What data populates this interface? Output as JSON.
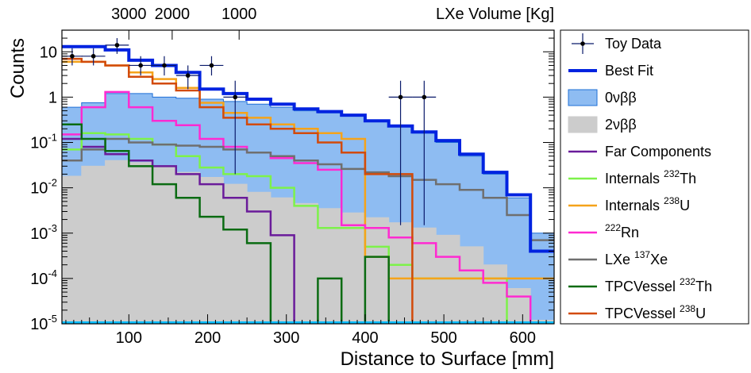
{
  "chart_data": {
    "type": "histogram",
    "xlabel": "Distance to Surface [mm]",
    "ylabel": "Counts",
    "xlim": [
      15,
      640
    ],
    "ylim": [
      1e-05,
      30
    ],
    "yscale": "log",
    "x_ticks": [
      100,
      200,
      300,
      400,
      500,
      600
    ],
    "x_tick_labels": [
      "100",
      "200",
      "300",
      "400",
      "500",
      "600"
    ],
    "y_ticks": [
      1e-05,
      0.0001,
      0.001,
      0.01,
      0.1,
      1,
      10
    ],
    "y_tick_labels": [
      {
        "base": "10",
        "exp": "-5"
      },
      {
        "base": "10",
        "exp": "-4"
      },
      {
        "base": "10",
        "exp": "-3"
      },
      {
        "base": "10",
        "exp": "-2"
      },
      {
        "base": "10",
        "exp": "-1"
      },
      {
        "base": "1",
        "exp": ""
      },
      {
        "base": "10",
        "exp": ""
      }
    ],
    "top_axis": {
      "label": "LXe Volume [Kg]",
      "ticks": [
        {
          "label": "3000",
          "x": 100
        },
        {
          "label": "2000",
          "x": 155
        },
        {
          "label": "1000",
          "x": 240
        }
      ]
    },
    "bin_edges": [
      15,
      40,
      70,
      100,
      130,
      160,
      190,
      220,
      250,
      280,
      310,
      340,
      370,
      400,
      430,
      460,
      490,
      520,
      550,
      580,
      610,
      640
    ],
    "series": [
      {
        "key": "ov",
        "kind": "fill",
        "fill": "#8ebcf2",
        "stroke": "#1f6fd6",
        "stroke_width": 1,
        "values": [
          0.6,
          0.75,
          1.2,
          1.2,
          1.0,
          0.95,
          0.9,
          0.8,
          0.7,
          0.6,
          0.5,
          0.45,
          0.38,
          0.3,
          0.22,
          0.16,
          0.1,
          0.05,
          0.02,
          0.006,
          0.001
        ]
      },
      {
        "key": "tv",
        "kind": "fill",
        "fill": "#cccccc",
        "stroke": "#cccccc",
        "stroke_width": 1,
        "values": [
          0.018,
          0.03,
          0.04,
          0.036,
          0.03,
          0.022,
          0.017,
          0.012,
          0.008,
          0.006,
          0.0045,
          0.0035,
          0.0028,
          0.0022,
          0.0017,
          0.0013,
          0.0009,
          0.0005,
          0.0002,
          6e-05,
          1.2e-05
        ]
      },
      {
        "key": "far",
        "kind": "line",
        "color": "#6a1b9a",
        "stroke_width": 2.5,
        "values": [
          0.12,
          0.08,
          0.055,
          0.04,
          0.03,
          0.02,
          0.012,
          0.006,
          0.003,
          0.0009,
          1e-05,
          1e-05,
          1e-05,
          1e-05,
          1e-05,
          1e-05,
          1e-05,
          1e-05,
          1e-05,
          1e-05,
          1e-05
        ]
      },
      {
        "key": "th",
        "kind": "line",
        "color": "#7df24a",
        "stroke_width": 2.5,
        "values": [
          0.07,
          0.16,
          0.15,
          0.12,
          0.09,
          0.05,
          0.028,
          0.02,
          0.018,
          0.01,
          0.004,
          0.0013,
          0.0013,
          0.0005,
          0.0002,
          0.0001,
          0.0001,
          0.0001,
          0.0001,
          1e-05,
          1e-05
        ]
      },
      {
        "key": "u",
        "kind": "line",
        "color": "#f5a31a",
        "stroke_width": 2.5,
        "values": [
          6,
          6,
          5,
          3.5,
          2.5,
          1.6,
          0.75,
          0.45,
          0.35,
          0.25,
          0.2,
          0.16,
          0.12,
          0.0003,
          0.0001,
          0.0001,
          0.0001,
          0.0001,
          0.0001,
          0.0001,
          0.0001
        ]
      },
      {
        "key": "rn",
        "kind": "line",
        "color": "#ff2ad1",
        "stroke_width": 2.5,
        "values": [
          0.15,
          0.6,
          1.3,
          0.6,
          0.3,
          0.24,
          0.12,
          0.08,
          0.06,
          0.045,
          0.035,
          0.025,
          0.0015,
          0.0013,
          0.0008,
          0.0006,
          0.0003,
          0.00015,
          8e-05,
          4e-05,
          1e-05
        ]
      },
      {
        "key": "xe",
        "kind": "line",
        "color": "#6f6f6f",
        "stroke_width": 2.5,
        "values": [
          0.04,
          0.07,
          0.12,
          0.1,
          0.09,
          0.085,
          0.08,
          0.07,
          0.06,
          0.05,
          0.04,
          0.033,
          0.026,
          0.022,
          0.018,
          0.015,
          0.012,
          0.009,
          0.006,
          0.0025,
          0.0007
        ]
      },
      {
        "key": "tpth",
        "kind": "line",
        "color": "#0a6b12",
        "stroke_width": 2.5,
        "values": [
          0.25,
          0.12,
          0.065,
          0.03,
          0.012,
          0.006,
          0.0023,
          0.0012,
          0.0006,
          1e-05,
          1e-05,
          0.0001,
          1e-05,
          0.0003,
          1e-05,
          1e-05,
          1e-05,
          1e-05,
          1e-05,
          1e-05,
          1e-05
        ]
      },
      {
        "key": "tpu",
        "kind": "line",
        "color": "#d24a0a",
        "stroke_width": 2.5,
        "values": [
          7,
          6,
          5,
          2.8,
          2.0,
          1.4,
          0.6,
          0.35,
          0.25,
          0.2,
          0.16,
          0.1,
          0.06,
          0.02,
          0.02,
          1e-05,
          1e-05,
          1e-05,
          1e-05,
          1e-05,
          1e-05
        ]
      },
      {
        "key": "bf",
        "kind": "line",
        "color": "#0023e0",
        "stroke_width": 4,
        "values": [
          13,
          13,
          11,
          6.5,
          5,
          3.5,
          1.5,
          1.2,
          0.9,
          0.7,
          0.55,
          0.48,
          0.4,
          0.3,
          0.23,
          0.17,
          0.11,
          0.055,
          0.022,
          0.007,
          0.0004
        ]
      }
    ],
    "data_points": {
      "key": "data",
      "color": "#0a1a6b",
      "points": [
        {
          "x": 28,
          "y": 8,
          "xerr": 13,
          "ylo": 5,
          "yhi": 12
        },
        {
          "x": 55,
          "y": 8,
          "xerr": 15,
          "ylo": 5,
          "yhi": 12
        },
        {
          "x": 85,
          "y": 14,
          "xerr": 15,
          "ylo": 9,
          "yhi": 20
        },
        {
          "x": 115,
          "y": 5,
          "xerr": 15,
          "ylo": 3,
          "yhi": 8
        },
        {
          "x": 145,
          "y": 5,
          "xerr": 15,
          "ylo": 3,
          "yhi": 8
        },
        {
          "x": 175,
          "y": 3,
          "xerr": 15,
          "ylo": 1.5,
          "yhi": 5
        },
        {
          "x": 205,
          "y": 5,
          "xerr": 15,
          "ylo": 3,
          "yhi": 8
        },
        {
          "x": 235,
          "y": 1,
          "xerr": 15,
          "ylo": 0.02,
          "yhi": 2.3
        },
        {
          "x": 445,
          "y": 1,
          "xerr": 15,
          "ylo": 0.0015,
          "yhi": 2.3
        },
        {
          "x": 475,
          "y": 1,
          "xerr": 15,
          "ylo": 0.0015,
          "yhi": 2.3
        }
      ]
    },
    "axis_color": "#00bfff",
    "legend": [
      {
        "key": "data",
        "type": "marker",
        "color": "#0a1a6b",
        "label": "Toy Data"
      },
      {
        "key": "bf",
        "type": "line",
        "color": "#0023e0",
        "label": "Best Fit"
      },
      {
        "key": "ov",
        "type": "box",
        "color": "#8ebcf2",
        "label": "0νββ"
      },
      {
        "key": "tv",
        "type": "box",
        "color": "#cccccc",
        "label": "2νββ"
      },
      {
        "key": "far",
        "type": "line",
        "color": "#6a1b9a",
        "label": "Far Components"
      },
      {
        "key": "th",
        "type": "line",
        "color": "#7df24a",
        "label": "Internals ",
        "sup": "232",
        "suffix": "Th"
      },
      {
        "key": "u",
        "type": "line",
        "color": "#f5a31a",
        "label": "Internals ",
        "sup": "238",
        "suffix": "U"
      },
      {
        "key": "rn",
        "type": "line",
        "color": "#ff2ad1",
        "label": "",
        "sup": "222",
        "suffix": "Rn"
      },
      {
        "key": "xe",
        "type": "line",
        "color": "#6f6f6f",
        "label": "LXe ",
        "sup": "137",
        "suffix": "Xe"
      },
      {
        "key": "tpth",
        "type": "line",
        "color": "#0a6b12",
        "label": "TPCVessel ",
        "sup": "232",
        "suffix": "Th"
      },
      {
        "key": "tpu",
        "type": "line",
        "color": "#d24a0a",
        "label": "TPCVessel ",
        "sup": "238",
        "suffix": "U"
      }
    ]
  }
}
